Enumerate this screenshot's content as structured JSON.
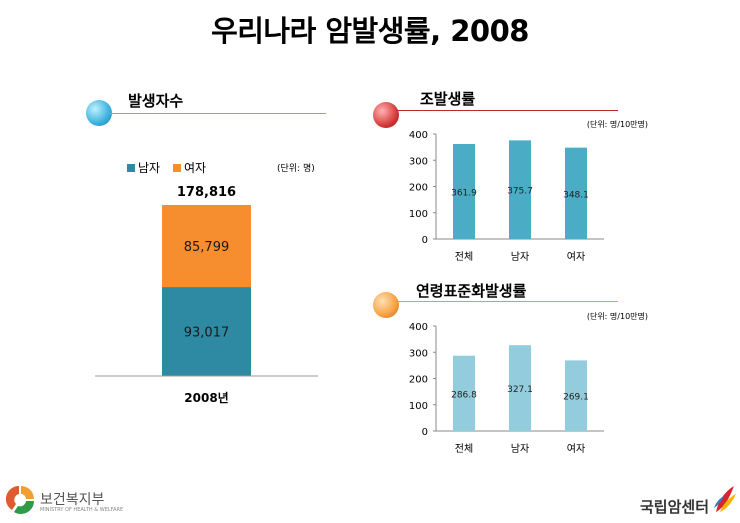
{
  "page": {
    "title": "우리나라 암발생률,  2008",
    "footer_left": {
      "name": "보건복지부",
      "sub": "MINISTRY OF HEALTH & WELFARE"
    },
    "footer_right": {
      "name": "국립암센터"
    }
  },
  "chart_data": [
    {
      "id": "patients",
      "type": "bar",
      "title": "발생자수",
      "unit_label": "(단위:  명)",
      "categories": [
        "2008년"
      ],
      "stacked": true,
      "series": [
        {
          "name": "남자",
          "values": [
            93017
          ],
          "labels": [
            "93,017"
          ],
          "color": "#2e8aa3"
        },
        {
          "name": "여자",
          "values": [
            85799
          ],
          "labels": [
            "85,799"
          ],
          "color": "#f68d2e"
        }
      ],
      "total_label": "178,816",
      "legend": "top-left",
      "ylim": [
        0,
        200000
      ],
      "accent_color": "#4cb8e4"
    },
    {
      "id": "crude",
      "type": "bar",
      "title": "조발생률",
      "unit_label": "(단위:  명/10만명)",
      "categories": [
        "전체",
        "남자",
        "여자"
      ],
      "values": [
        361.9,
        375.7,
        348.1
      ],
      "labels": [
        "361.9",
        "375.7",
        "348.1"
      ],
      "yticks": [
        "0",
        "100",
        "200",
        "300",
        "400"
      ],
      "ylim": [
        0,
        400
      ],
      "bar_color": "#4bacc6",
      "accent_color": "#c0272d"
    },
    {
      "id": "asr",
      "type": "bar",
      "title": "연령표준화발생률",
      "unit_label": "(단위:  명/10만명)",
      "categories": [
        "전체",
        "남자",
        "여자"
      ],
      "values": [
        286.8,
        327.1,
        269.1
      ],
      "labels": [
        "286.8",
        "327.1",
        "269.1"
      ],
      "yticks": [
        "0",
        "100",
        "200",
        "300",
        "400"
      ],
      "ylim": [
        0,
        400
      ],
      "bar_color": "#93cddd",
      "accent_color": "#f79433"
    }
  ]
}
